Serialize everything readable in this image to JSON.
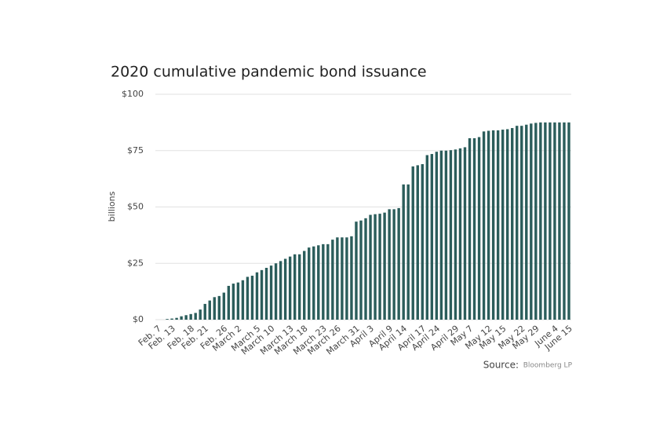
{
  "chart_data": {
    "type": "bar",
    "title": "2020 cumulative pandemic bond issuance",
    "y_label": "billions",
    "source_label": "Source:",
    "source": "Bloomberg LP",
    "color": "#2b5d5b",
    "grid": true,
    "ylim": [
      0,
      100
    ],
    "yticks": [
      {
        "value": 0,
        "label": "$0"
      },
      {
        "value": 25,
        "label": "$25"
      },
      {
        "value": 50,
        "label": "$50"
      },
      {
        "value": 75,
        "label": "$75"
      },
      {
        "value": 100,
        "label": "$100"
      }
    ],
    "categories": [
      "Feb. 7",
      null,
      null,
      "Feb. 13",
      null,
      null,
      null,
      "Feb. 18",
      null,
      null,
      "Feb. 21",
      null,
      null,
      null,
      "Feb. 26",
      null,
      null,
      "March 2",
      null,
      null,
      null,
      "March 5",
      null,
      null,
      "March 10",
      null,
      null,
      null,
      "March 13",
      null,
      null,
      "March 18",
      null,
      null,
      null,
      "March 23",
      null,
      null,
      "March 26",
      null,
      null,
      null,
      "March 31",
      null,
      null,
      "April 3",
      null,
      null,
      null,
      "April 9",
      null,
      null,
      "April 14",
      null,
      null,
      null,
      "April 17",
      null,
      null,
      "April 24",
      null,
      null,
      null,
      "April 29",
      null,
      null,
      "May 7",
      null,
      null,
      null,
      "May 12",
      null,
      null,
      "May 15",
      null,
      null,
      null,
      "May 22",
      null,
      null,
      "May 29",
      null,
      null,
      null,
      "June 4",
      null,
      null,
      "June 15"
    ],
    "values": [
      0,
      0,
      0.3,
      0.5,
      0.8,
      1.5,
      2,
      2.5,
      3,
      4.5,
      7,
      8.5,
      10,
      10.5,
      12,
      15,
      16,
      16.5,
      17.5,
      19,
      19.5,
      21,
      22,
      23,
      24,
      25,
      26,
      27,
      28,
      29,
      29,
      30.5,
      32,
      32.5,
      33,
      33.5,
      33.5,
      35.5,
      36.5,
      36.5,
      36.5,
      37,
      43.5,
      44,
      45,
      46.5,
      46.8,
      47,
      47.5,
      49,
      49,
      49.5,
      60,
      60,
      68,
      68.5,
      69,
      73,
      73.5,
      74.5,
      75,
      75,
      75.2,
      75.5,
      76,
      76.5,
      80.5,
      80.5,
      81,
      83.5,
      83.8,
      84,
      84,
      84.3,
      84.5,
      85,
      86,
      86,
      86.5,
      87,
      87.3,
      87.5,
      87.5,
      87.5,
      87.5,
      87.5,
      87.5,
      87.5
    ]
  }
}
